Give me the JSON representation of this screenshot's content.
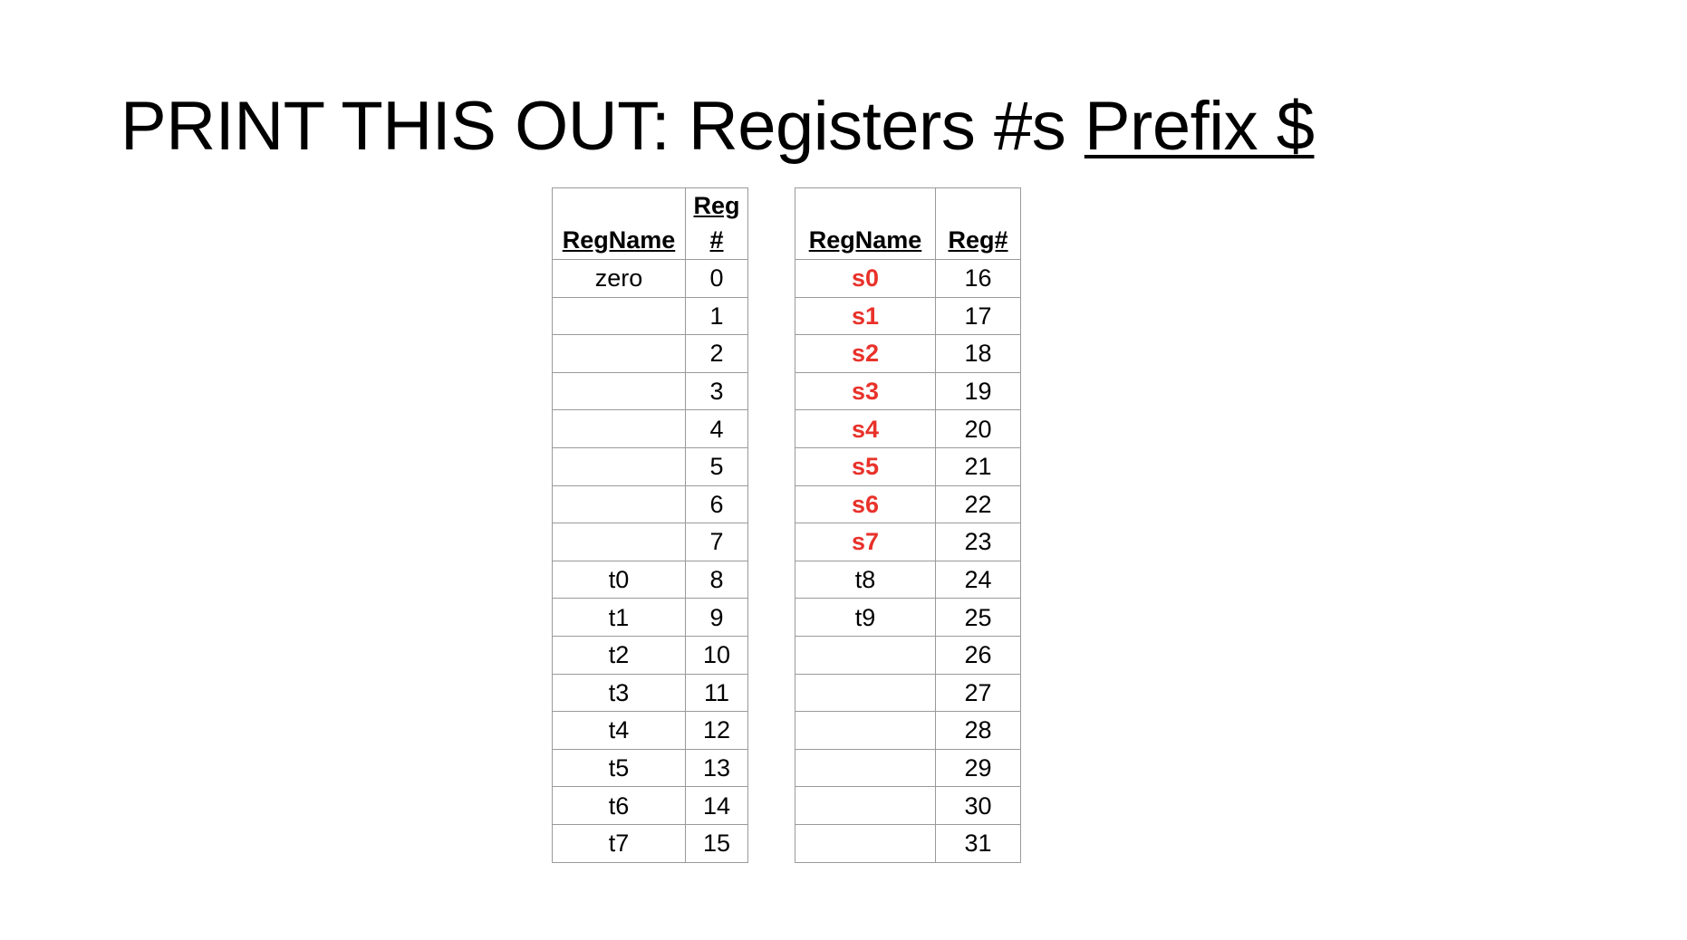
{
  "title": {
    "main": "PRINT THIS OUT: Registers #s ",
    "prefix": "Prefix $"
  },
  "colors": {
    "temporary": "#2f5597",
    "saved": "#e8322a",
    "plain": "#000000"
  },
  "left_table": {
    "headers": {
      "name": "RegName",
      "num_line1": "Reg",
      "num_line2": "#"
    },
    "rows": [
      {
        "name": "zero",
        "num": "0",
        "kind": "plain"
      },
      {
        "name": "",
        "num": "1",
        "kind": "plain"
      },
      {
        "name": "",
        "num": "2",
        "kind": "plain"
      },
      {
        "name": "",
        "num": "3",
        "kind": "plain"
      },
      {
        "name": "",
        "num": "4",
        "kind": "plain"
      },
      {
        "name": "",
        "num": "5",
        "kind": "plain"
      },
      {
        "name": "",
        "num": "6",
        "kind": "plain"
      },
      {
        "name": "",
        "num": "7",
        "kind": "plain"
      },
      {
        "name": "t0",
        "num": "8",
        "kind": "temporary"
      },
      {
        "name": "t1",
        "num": "9",
        "kind": "temporary"
      },
      {
        "name": "t2",
        "num": "10",
        "kind": "temporary"
      },
      {
        "name": "t3",
        "num": "11",
        "kind": "temporary"
      },
      {
        "name": "t4",
        "num": "12",
        "kind": "temporary"
      },
      {
        "name": "t5",
        "num": "13",
        "kind": "temporary"
      },
      {
        "name": "t6",
        "num": "14",
        "kind": "temporary"
      },
      {
        "name": "t7",
        "num": "15",
        "kind": "temporary"
      }
    ]
  },
  "right_table": {
    "headers": {
      "name": "RegName",
      "num": "Reg#"
    },
    "rows": [
      {
        "name": "s0",
        "num": "16",
        "kind": "saved"
      },
      {
        "name": "s1",
        "num": "17",
        "kind": "saved"
      },
      {
        "name": "s2",
        "num": "18",
        "kind": "saved"
      },
      {
        "name": "s3",
        "num": "19",
        "kind": "saved"
      },
      {
        "name": "s4",
        "num": "20",
        "kind": "saved"
      },
      {
        "name": "s5",
        "num": "21",
        "kind": "saved"
      },
      {
        "name": "s6",
        "num": "22",
        "kind": "saved"
      },
      {
        "name": "s7",
        "num": "23",
        "kind": "saved"
      },
      {
        "name": "t8",
        "num": "24",
        "kind": "temporary"
      },
      {
        "name": "t9",
        "num": "25",
        "kind": "temporary"
      },
      {
        "name": "",
        "num": "26",
        "kind": "plain"
      },
      {
        "name": "",
        "num": "27",
        "kind": "plain"
      },
      {
        "name": "",
        "num": "28",
        "kind": "plain"
      },
      {
        "name": "",
        "num": "29",
        "kind": "plain"
      },
      {
        "name": "",
        "num": "30",
        "kind": "plain"
      },
      {
        "name": "",
        "num": "31",
        "kind": "plain"
      }
    ]
  }
}
